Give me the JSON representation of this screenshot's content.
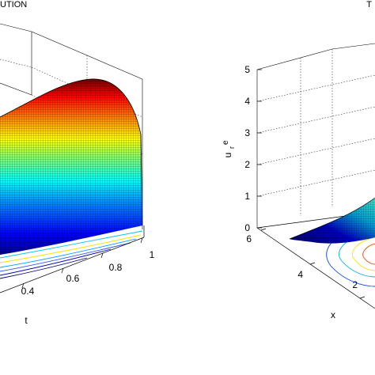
{
  "chart_data": [
    {
      "type": "surface",
      "title": "UTION",
      "axes": {
        "t": {
          "label": "t",
          "ticks": [
            "0.4",
            "0.6",
            "0.8",
            "1"
          ]
        }
      },
      "surface": {
        "colormap": "jet",
        "contour_projection": true,
        "shape": "peaked ridge decreasing toward t = 1"
      },
      "grid": true
    },
    {
      "type": "surface",
      "title": "T",
      "axes": {
        "z": {
          "label_main": "u",
          "label_sub": "r",
          "label_sup": "e",
          "ticks": [
            "0",
            "1",
            "2",
            "3",
            "4",
            "5"
          ]
        },
        "x": {
          "label": "x",
          "ticks": [
            "6",
            "4",
            "2"
          ]
        }
      },
      "surface": {
        "colormap": "jet",
        "contour_projection": true,
        "shape": "low flat sheet near u = 0"
      },
      "grid": true
    }
  ],
  "colors": {
    "colormap": [
      "#000080",
      "#0000ff",
      "#0080ff",
      "#00ffff",
      "#80ff80",
      "#ffff00",
      "#ff8000",
      "#ff0000",
      "#800000"
    ],
    "axes": "#000000",
    "grid": "#000000"
  }
}
